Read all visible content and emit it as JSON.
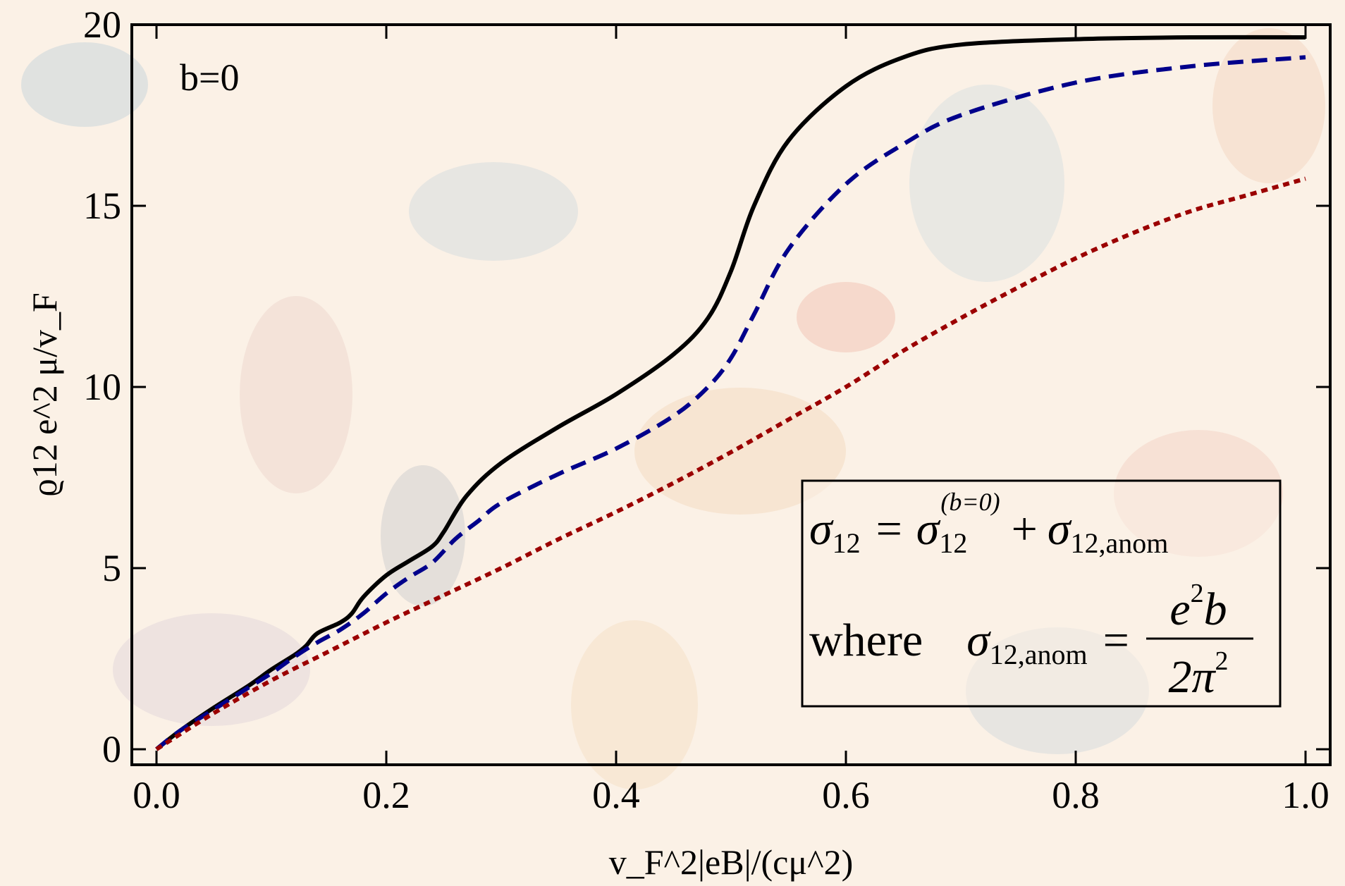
{
  "chart_data": {
    "type": "line",
    "annotation": "b=0",
    "xlabel": "v_F^2|eB|/(cμ^2)",
    "ylabel": "ϱ12 e^2 μ/v_F",
    "xlim": [
      0,
      1.0
    ],
    "ylim": [
      0,
      20
    ],
    "x_ticks": [
      "0.0",
      "0.2",
      "0.4",
      "0.6",
      "0.8",
      "1.0"
    ],
    "y_ticks": [
      "0",
      "5",
      "10",
      "15",
      "20"
    ],
    "grid": false,
    "series": [
      {
        "style": "solid",
        "color": "#000000",
        "points": [
          [
            0,
            0
          ],
          [
            0.02,
            0.5
          ],
          [
            0.05,
            1.15
          ],
          [
            0.08,
            1.75
          ],
          [
            0.1,
            2.2
          ],
          [
            0.12,
            2.6
          ],
          [
            0.13,
            2.85
          ],
          [
            0.14,
            3.2
          ],
          [
            0.16,
            3.5
          ],
          [
            0.17,
            3.75
          ],
          [
            0.18,
            4.2
          ],
          [
            0.2,
            4.8
          ],
          [
            0.22,
            5.2
          ],
          [
            0.24,
            5.6
          ],
          [
            0.25,
            6.0
          ],
          [
            0.27,
            7.0
          ],
          [
            0.3,
            7.9
          ],
          [
            0.35,
            8.9
          ],
          [
            0.4,
            9.8
          ],
          [
            0.45,
            10.9
          ],
          [
            0.48,
            11.9
          ],
          [
            0.5,
            13.2
          ],
          [
            0.52,
            15.0
          ],
          [
            0.55,
            16.8
          ],
          [
            0.6,
            18.3
          ],
          [
            0.65,
            19.1
          ],
          [
            0.7,
            19.45
          ],
          [
            0.8,
            19.6
          ],
          [
            0.9,
            19.65
          ],
          [
            1.0,
            19.65
          ]
        ]
      },
      {
        "style": "dashed",
        "color": "#00008b",
        "points": [
          [
            0,
            0
          ],
          [
            0.02,
            0.5
          ],
          [
            0.05,
            1.1
          ],
          [
            0.08,
            1.7
          ],
          [
            0.1,
            2.1
          ],
          [
            0.12,
            2.55
          ],
          [
            0.14,
            2.95
          ],
          [
            0.16,
            3.3
          ],
          [
            0.18,
            3.75
          ],
          [
            0.2,
            4.3
          ],
          [
            0.22,
            4.75
          ],
          [
            0.24,
            5.15
          ],
          [
            0.26,
            5.8
          ],
          [
            0.28,
            6.3
          ],
          [
            0.3,
            6.8
          ],
          [
            0.35,
            7.6
          ],
          [
            0.4,
            8.3
          ],
          [
            0.45,
            9.2
          ],
          [
            0.48,
            10.0
          ],
          [
            0.5,
            10.8
          ],
          [
            0.52,
            12.0
          ],
          [
            0.55,
            13.8
          ],
          [
            0.6,
            15.6
          ],
          [
            0.65,
            16.7
          ],
          [
            0.7,
            17.5
          ],
          [
            0.8,
            18.4
          ],
          [
            0.9,
            18.85
          ],
          [
            1.0,
            19.1
          ]
        ]
      },
      {
        "style": "dotted",
        "color": "#9b0000",
        "points": [
          [
            0,
            0
          ],
          [
            0.05,
            1.0
          ],
          [
            0.1,
            1.9
          ],
          [
            0.15,
            2.7
          ],
          [
            0.2,
            3.5
          ],
          [
            0.25,
            4.25
          ],
          [
            0.3,
            5.0
          ],
          [
            0.35,
            5.8
          ],
          [
            0.4,
            6.55
          ],
          [
            0.45,
            7.35
          ],
          [
            0.5,
            8.2
          ],
          [
            0.55,
            9.1
          ],
          [
            0.6,
            10.0
          ],
          [
            0.65,
            11.0
          ],
          [
            0.7,
            11.9
          ],
          [
            0.75,
            12.75
          ],
          [
            0.8,
            13.55
          ],
          [
            0.85,
            14.25
          ],
          [
            0.9,
            14.85
          ],
          [
            0.95,
            15.3
          ],
          [
            1.0,
            15.75
          ]
        ]
      }
    ],
    "legend_box": {
      "line1": {
        "lhs": "σ",
        "lhs_sub": "12",
        "eq": "=",
        "term1": "σ",
        "term1_sub": "12",
        "term1_sup": "(b=0)",
        "plus": "+",
        "term2": "σ",
        "term2_sub": "12,anom"
      },
      "line2": {
        "where": "where",
        "lhs": "σ",
        "lhs_sub": "12,anom",
        "eq": "=",
        "num": "e",
        "num_sup": "2",
        "num_tail": "b",
        "den": "2π",
        "den_sup": "2"
      }
    }
  }
}
